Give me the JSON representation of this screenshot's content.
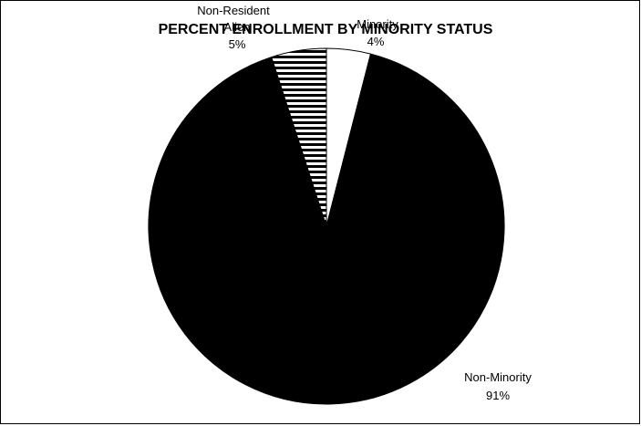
{
  "chart_data": {
    "type": "pie",
    "title": "PERCENT ENROLLMENT BY MINORITY STATUS",
    "slices": [
      {
        "name": "Minority",
        "value": 4,
        "label": "4%",
        "fill": "#ffffff",
        "pattern": "none"
      },
      {
        "name": "Non-Minority",
        "value": 91,
        "label": "91%",
        "fill": "#000000",
        "pattern": "none"
      },
      {
        "name": "Non-Resident Alien",
        "value": 5,
        "label": "5%",
        "fill": "#ffffff",
        "pattern": "horizontal-stripes"
      }
    ],
    "start_angle_deg": 0,
    "direction": "clockwise"
  }
}
